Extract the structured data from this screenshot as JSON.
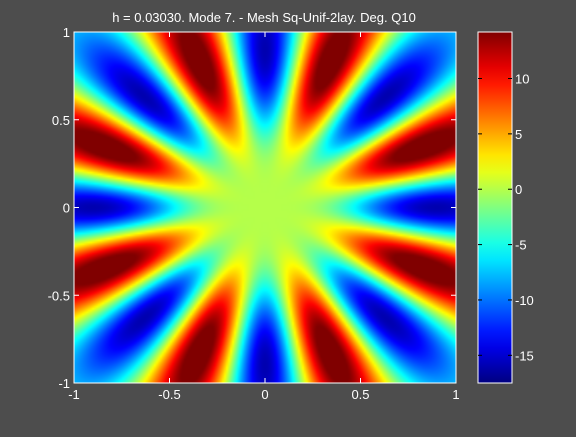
{
  "chart_data": {
    "type": "heatmap",
    "title": "h  =  0.03030.  Mode 7.  -  Mesh Sq-Unif-2lay.  Deg. Q10",
    "xlabel": "",
    "ylabel": "",
    "xlim": [
      -1,
      1
    ],
    "ylim": [
      -1,
      1
    ],
    "x_ticks": [
      -1,
      -0.5,
      0,
      0.5,
      1
    ],
    "x_tick_labels": [
      "-1",
      "-0.5",
      "0",
      "0.5",
      "1"
    ],
    "y_ticks": [
      -1,
      -0.5,
      0,
      0.5,
      1
    ],
    "y_tick_labels": [
      "-1",
      "-0.5",
      "0",
      "0.5",
      "1"
    ],
    "colormap": "jet",
    "colorbar": {
      "range": [
        -17.5,
        14.2
      ],
      "ticks": [
        -15,
        -10,
        -5,
        0,
        5,
        10
      ],
      "tick_labels": [
        "-15",
        "-10",
        "-5",
        "0",
        "5",
        "10"
      ]
    },
    "field": {
      "angular_mode": 8,
      "radial_peak": 0.9,
      "description_points": [
        {
          "x": -0.95,
          "y": 0.0,
          "value": -17
        },
        {
          "x": 0.95,
          "y": 0.0,
          "value": -17
        },
        {
          "x": 0.0,
          "y": 0.95,
          "value": -17
        },
        {
          "x": 0.0,
          "y": -0.95,
          "value": -17
        },
        {
          "x": -0.9,
          "y": 0.3,
          "value": 14
        },
        {
          "x": -0.3,
          "y": -0.9,
          "value": 14
        }
      ]
    },
    "grid": false
  },
  "colors": {
    "background": "#4d4d4d",
    "text": "#ffffff"
  }
}
